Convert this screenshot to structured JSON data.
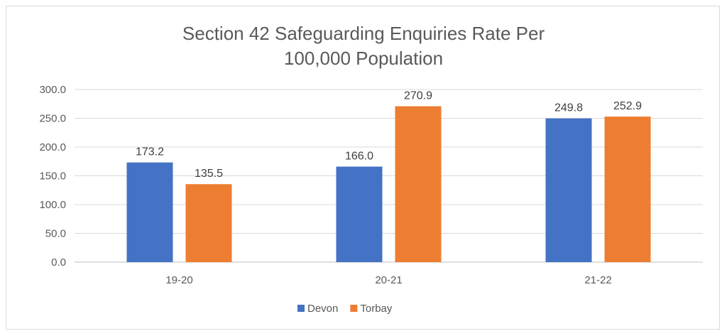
{
  "chart_data": {
    "type": "bar",
    "title_lines": [
      "Section 42 Safeguarding Enquiries Rate Per",
      "100,000 Population"
    ],
    "categories": [
      "19-20",
      "20-21",
      "21-22"
    ],
    "series": [
      {
        "name": "Devon",
        "values": [
          173.2,
          166.0,
          249.8
        ],
        "labels": [
          "173.2",
          "166.0",
          "249.8"
        ],
        "color": "#4472C4"
      },
      {
        "name": "Torbay",
        "values": [
          135.5,
          270.9,
          252.9
        ],
        "labels": [
          "135.5",
          "270.9",
          "252.9"
        ],
        "color": "#ED7D31"
      }
    ],
    "ylim": [
      0,
      300
    ],
    "yticks": [
      "0.0",
      "50.0",
      "100.0",
      "150.0",
      "200.0",
      "250.0",
      "300.0"
    ],
    "grid": true,
    "legend": "bottom"
  }
}
